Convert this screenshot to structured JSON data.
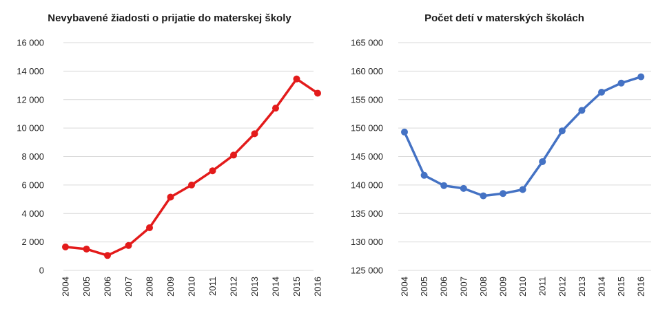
{
  "chart_data": [
    {
      "type": "line",
      "title": "Nevybavené žiadosti o prijatie do materskej školy",
      "xlabel": "",
      "ylabel": "",
      "categories": [
        "2004",
        "2005",
        "2006",
        "2007",
        "2008",
        "2009",
        "2010",
        "2011",
        "2012",
        "2013",
        "2014",
        "2015",
        "2016"
      ],
      "series": [
        {
          "values": [
            1650,
            1500,
            1050,
            1750,
            3000,
            5150,
            6000,
            7000,
            8100,
            9600,
            11400,
            13450,
            12450
          ],
          "color": "#e31b1b"
        }
      ],
      "ylim": [
        0,
        16000
      ],
      "yticks": [
        0,
        2000,
        4000,
        6000,
        8000,
        10000,
        12000,
        14000,
        16000
      ],
      "ytick_labels": [
        "0",
        "2 000",
        "4 000",
        "6 000",
        "8 000",
        "10 000",
        "12 000",
        "14 000",
        "16 000"
      ],
      "grid": true
    },
    {
      "type": "line",
      "title": "Počet detí v materských školách",
      "xlabel": "",
      "ylabel": "",
      "categories": [
        "2004",
        "2005",
        "2006",
        "2007",
        "2008",
        "2009",
        "2010",
        "2011",
        "2012",
        "2013",
        "2014",
        "2015",
        "2016"
      ],
      "series": [
        {
          "values": [
            149300,
            141700,
            139900,
            139400,
            138100,
            138500,
            139200,
            144100,
            149500,
            153100,
            156300,
            157900,
            159000
          ],
          "color": "#4472c4"
        }
      ],
      "ylim": [
        125000,
        165000
      ],
      "yticks": [
        125000,
        130000,
        135000,
        140000,
        145000,
        150000,
        155000,
        160000,
        165000
      ],
      "ytick_labels": [
        "125 000",
        "130 000",
        "135 000",
        "140 000",
        "145 000",
        "150 000",
        "155 000",
        "160 000",
        "165 000"
      ],
      "grid": true
    }
  ]
}
